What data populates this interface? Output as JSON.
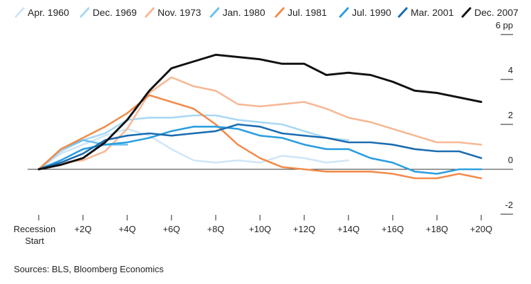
{
  "chart_data": {
    "type": "line",
    "title": "",
    "xlabel": "",
    "ylabel": "",
    "y_unit_label": "6 pp",
    "ylim": [
      -2,
      6
    ],
    "y_ticks": [
      -2,
      0,
      2,
      4,
      6
    ],
    "y_tick_labels": [
      "-2",
      "0",
      "2",
      "4",
      "6 pp"
    ],
    "x_ticks": [
      0,
      2,
      4,
      6,
      8,
      10,
      12,
      14,
      16,
      18,
      20
    ],
    "x_tick_labels": [
      "Recession Start",
      "+2Q",
      "+4Q",
      "+6Q",
      "+8Q",
      "+10Q",
      "+12Q",
      "+14Q",
      "+16Q",
      "+18Q",
      "+20Q"
    ],
    "legend_position": "top",
    "series": [
      {
        "name": "Apr. 1960",
        "color": "#cfe6f7",
        "x": [
          0,
          1,
          2,
          3,
          4,
          5,
          6,
          7,
          8,
          9,
          10,
          11,
          12,
          13,
          14
        ],
        "values": [
          0,
          0.7,
          1.1,
          1.5,
          1.8,
          1.5,
          0.9,
          0.4,
          0.3,
          0.4,
          0.3,
          0.6,
          0.5,
          0.3,
          0.4
        ]
      },
      {
        "name": "Dec. 1969",
        "color": "#a8d8f4",
        "x": [
          0,
          1,
          2,
          3,
          4,
          5,
          6,
          7,
          8,
          9,
          10,
          11,
          12,
          13,
          14
        ],
        "values": [
          0,
          0.8,
          1.3,
          1.6,
          2.2,
          2.3,
          2.3,
          2.4,
          2.4,
          2.2,
          2.1,
          2.0,
          1.7,
          1.4,
          1.3
        ]
      },
      {
        "name": "Nov. 1973",
        "color": "#f7b894",
        "x": [
          0,
          1,
          2,
          3,
          4,
          5,
          6,
          7,
          8,
          9,
          10,
          11,
          12,
          13,
          14,
          15,
          16,
          17,
          18,
          19,
          20
        ],
        "values": [
          0,
          0.3,
          0.4,
          0.8,
          1.8,
          3.4,
          4.1,
          3.7,
          3.5,
          2.9,
          2.8,
          2.9,
          3.0,
          2.7,
          2.3,
          2.1,
          1.8,
          1.5,
          1.2,
          1.2,
          1.1
        ]
      },
      {
        "name": "Jan. 1980",
        "color": "#6cc0ee",
        "x": [
          0,
          1,
          2,
          3,
          4
        ],
        "values": [
          0,
          0.9,
          1.3,
          1.1,
          1.1
        ]
      },
      {
        "name": "Jul. 1981",
        "color": "#f28b4a",
        "x": [
          0,
          1,
          2,
          3,
          4,
          5,
          6,
          7,
          8,
          9,
          10,
          11,
          12,
          13,
          14,
          15,
          16,
          17,
          18,
          19,
          20
        ],
        "values": [
          0,
          0.9,
          1.4,
          1.9,
          2.5,
          3.3,
          3.0,
          2.7,
          2.0,
          1.1,
          0.5,
          0.1,
          0.0,
          -0.1,
          -0.1,
          -0.1,
          -0.2,
          -0.4,
          -0.4,
          -0.2,
          -0.4
        ]
      },
      {
        "name": "Jul. 1990",
        "color": "#2b9ee0",
        "x": [
          0,
          1,
          2,
          3,
          4,
          5,
          6,
          7,
          8,
          9,
          10,
          11,
          12,
          13,
          14,
          15,
          16,
          17,
          18,
          19,
          20
        ],
        "values": [
          0,
          0.4,
          0.9,
          1.1,
          1.2,
          1.4,
          1.7,
          1.9,
          1.9,
          1.8,
          1.5,
          1.4,
          1.1,
          0.9,
          0.9,
          0.5,
          0.3,
          -0.1,
          -0.2,
          0.0,
          0.0
        ]
      },
      {
        "name": "Mar. 2001",
        "color": "#1a6cb0",
        "x": [
          0,
          1,
          2,
          3,
          4,
          5,
          6,
          7,
          8,
          9,
          10,
          11,
          12,
          13,
          14,
          15,
          16,
          17,
          18,
          19,
          20
        ],
        "values": [
          0,
          0.3,
          0.7,
          1.3,
          1.5,
          1.6,
          1.5,
          1.6,
          1.7,
          2.0,
          1.9,
          1.6,
          1.5,
          1.4,
          1.2,
          1.2,
          1.1,
          0.9,
          0.8,
          0.8,
          0.5
        ]
      },
      {
        "name": "Dec. 2007",
        "color": "#111111",
        "x": [
          0,
          1,
          2,
          3,
          4,
          5,
          6,
          7,
          8,
          9,
          10,
          11,
          12,
          13,
          14,
          15,
          16,
          17,
          18,
          19,
          20
        ],
        "values": [
          0,
          0.2,
          0.5,
          1.2,
          2.2,
          3.5,
          4.5,
          4.8,
          5.1,
          5.0,
          4.9,
          4.7,
          4.7,
          4.2,
          4.3,
          4.2,
          3.9,
          3.5,
          3.4,
          3.2,
          3.0
        ]
      }
    ],
    "source": "Sources: BLS, Bloomberg Economics"
  }
}
